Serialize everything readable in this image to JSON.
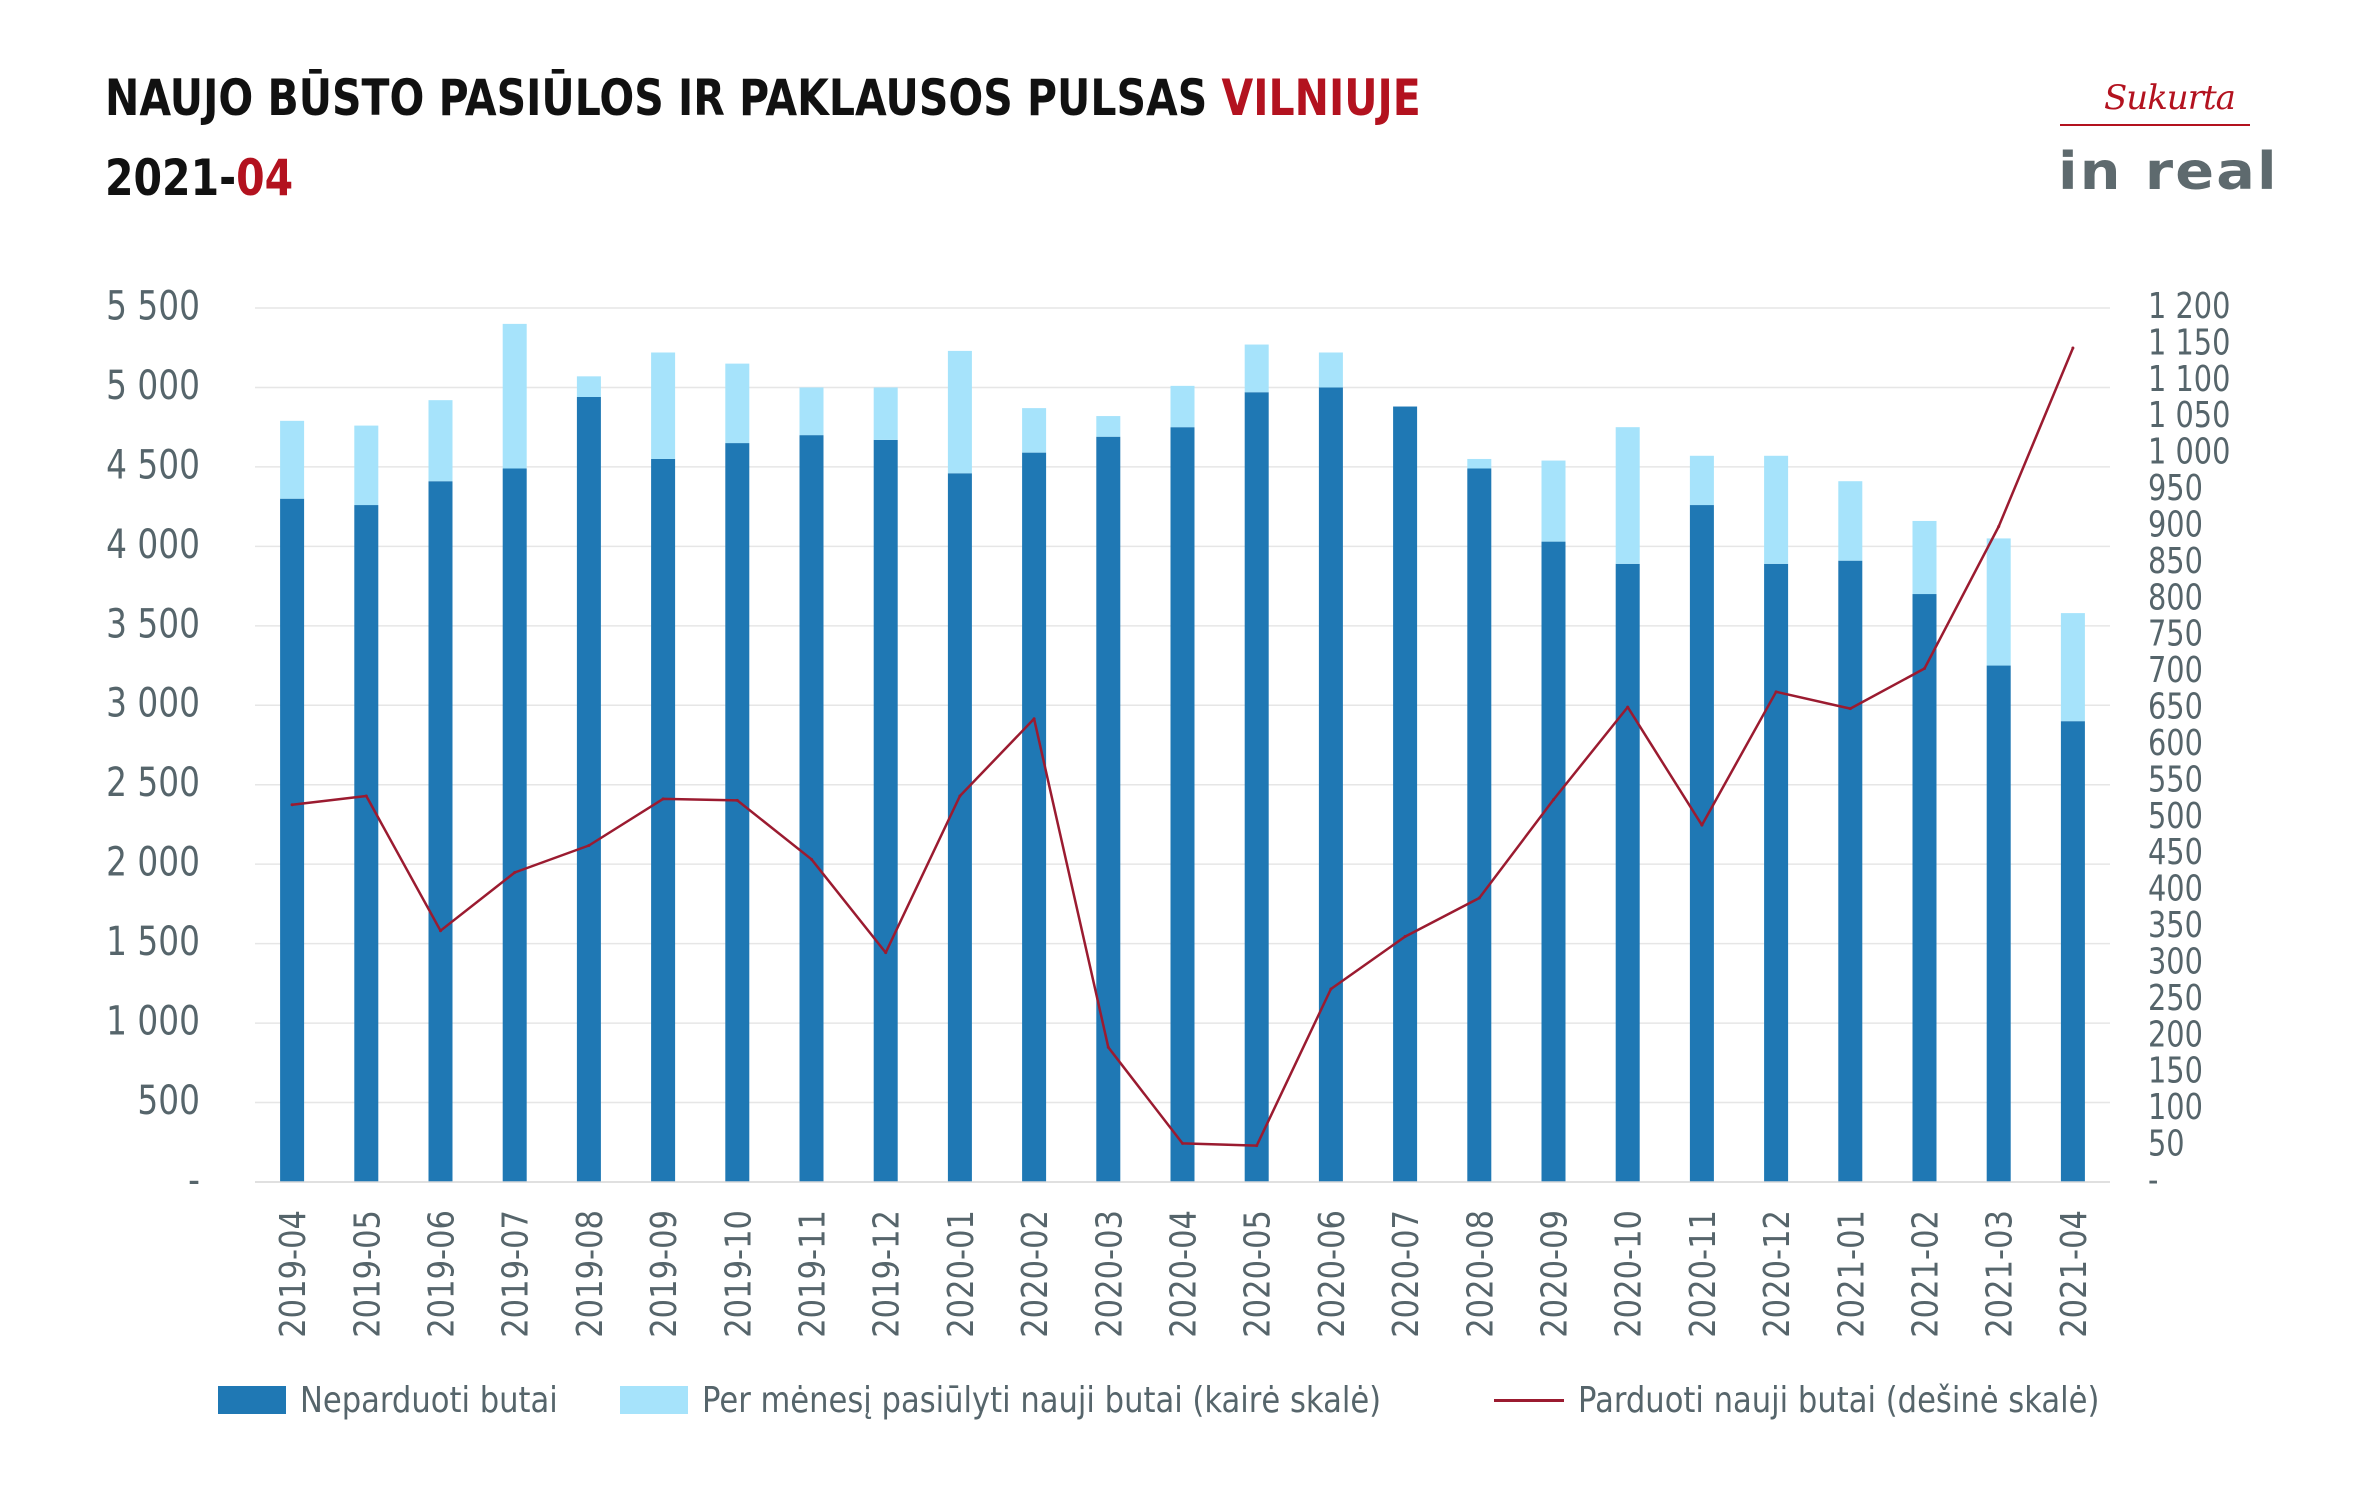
{
  "title": {
    "line1_main": "NAUJO BŪSTO PASIŪLOS IR PAKLAUSOS PULSAS ",
    "line1_accent": "VILNIUJE",
    "line2_main": "2021-",
    "line2_accent": "04"
  },
  "logo": {
    "top_text": "Sukurta",
    "brand_text": "in real"
  },
  "colors": {
    "accent": "#b3121f",
    "bar_unsold": "#1f78b4",
    "bar_new": "#a6e3fb",
    "line": "#9b1b30",
    "axis_text": "#56656b",
    "grid": "#e6e6e6"
  },
  "chart_data": {
    "type": "bar",
    "stacked": true,
    "categories": [
      "2019-04",
      "2019-05",
      "2019-06",
      "2019-07",
      "2019-08",
      "2019-09",
      "2019-10",
      "2019-11",
      "2019-12",
      "2020-01",
      "2020-02",
      "2020-03",
      "2020-04",
      "2020-05",
      "2020-06",
      "2020-07",
      "2020-08",
      "2020-09",
      "2020-10",
      "2020-11",
      "2020-12",
      "2021-01",
      "2021-02",
      "2021-03",
      "2021-04"
    ],
    "series": [
      {
        "name": "Neparduoti butai",
        "type": "bar",
        "axis": "left",
        "color": "#1f78b4",
        "values": [
          4300,
          4260,
          4410,
          4490,
          4940,
          4550,
          4650,
          4700,
          4670,
          4460,
          4590,
          4690,
          4750,
          4970,
          5000,
          4880,
          4490,
          4030,
          3890,
          4260,
          3890,
          3910,
          3700,
          3250,
          2900
        ]
      },
      {
        "name": "Per mėnesį pasiūlyti nauji butai (kairė skalė)",
        "type": "bar",
        "axis": "left",
        "color": "#a6e3fb",
        "values": [
          490,
          500,
          510,
          910,
          130,
          670,
          500,
          300,
          330,
          770,
          280,
          130,
          260,
          300,
          220,
          0,
          60,
          510,
          860,
          310,
          680,
          500,
          460,
          800,
          680
        ]
      },
      {
        "name": "Parduoti nauji butai (dešinė skalė)",
        "type": "line",
        "axis": "right",
        "color": "#9b1b30",
        "values": [
          518,
          530,
          345,
          425,
          462,
          526,
          524,
          443,
          315,
          530,
          636,
          185,
          53,
          50,
          265,
          337,
          390,
          525,
          652,
          490,
          673,
          650,
          705,
          900,
          1145
        ]
      }
    ],
    "y_left": {
      "min": 0,
      "max": 5500,
      "ticks": [
        0,
        500,
        1000,
        1500,
        2000,
        2500,
        3000,
        3500,
        4000,
        4500,
        5000,
        5500
      ],
      "tick_labels": [
        "-",
        "500",
        "1 000",
        "1 500",
        "2 000",
        "2 500",
        "3 000",
        "3 500",
        "4 000",
        "4 500",
        "5 000",
        "5 500"
      ]
    },
    "y_right": {
      "min": 0,
      "max": 1200,
      "ticks": [
        0,
        50,
        100,
        150,
        200,
        250,
        300,
        350,
        400,
        450,
        500,
        550,
        600,
        650,
        700,
        750,
        800,
        850,
        900,
        950,
        1000,
        1050,
        1100,
        1150,
        1200
      ],
      "tick_labels": [
        "-",
        "50",
        "100",
        "150",
        "200",
        "250",
        "300",
        "350",
        "400",
        "450",
        "500",
        "550",
        "600",
        "650",
        "700",
        "750",
        "800",
        "850",
        "900",
        "950",
        "1 000",
        "1 050",
        "1 100",
        "1 150",
        "1 200"
      ]
    },
    "grid": true,
    "legend_position": "bottom"
  }
}
